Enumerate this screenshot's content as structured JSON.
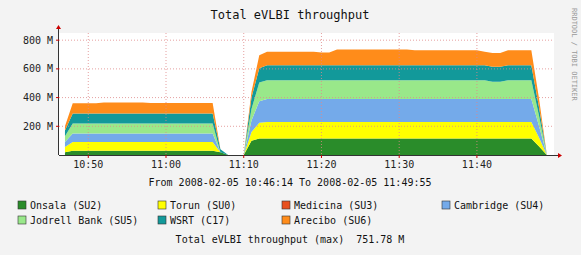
{
  "chart_data": {
    "type": "area",
    "title": "Total eVLBI throughput",
    "subtitle": "From 2008-02-05 10:46:14 To 2008-02-05 11:49:55",
    "annotations": [
      "Total eVLBI throughput (max)  751.78 M",
      "RRDTOOL / TOBI OETIKER"
    ],
    "stacked": true,
    "grid": true,
    "legend": "bottom",
    "xlim": [
      646.2333,
      709.9167
    ],
    "xticks": [
      {
        "value": 650,
        "label": "10:50"
      },
      {
        "value": 660,
        "label": "11:00"
      },
      {
        "value": 670,
        "label": "11:10"
      },
      {
        "value": 680,
        "label": "11:20"
      },
      {
        "value": 690,
        "label": "11:30"
      },
      {
        "value": 700,
        "label": "11:40"
      }
    ],
    "ylim": [
      0,
      850
    ],
    "yticks": [
      {
        "value": 200,
        "label": "200 M"
      },
      {
        "value": 400,
        "label": "400 M"
      },
      {
        "value": 600,
        "label": "600 M"
      },
      {
        "value": 800,
        "label": "800 M"
      }
    ],
    "x": [
      647,
      648,
      649,
      650,
      651,
      652,
      653,
      654,
      655,
      656,
      657,
      658,
      659,
      660,
      661,
      662,
      663,
      664,
      665,
      666,
      667,
      668,
      669,
      670,
      671,
      672,
      673,
      674,
      675,
      676,
      677,
      678,
      679,
      680,
      681,
      682,
      683,
      684,
      685,
      686,
      687,
      688,
      689,
      690,
      691,
      692,
      693,
      694,
      695,
      696,
      697,
      698,
      699,
      700,
      701,
      702,
      703,
      704,
      705,
      706,
      707,
      708,
      709
    ],
    "series": [
      {
        "name": "Onsala (SU2)",
        "color": "#2a8c2a",
        "values": [
          20,
          30,
          30,
          30,
          30,
          30,
          30,
          30,
          30,
          30,
          30,
          30,
          30,
          30,
          30,
          30,
          30,
          30,
          30,
          30,
          20,
          0,
          0,
          0,
          100,
          115,
          115,
          115,
          115,
          115,
          115,
          115,
          115,
          115,
          115,
          115,
          115,
          115,
          115,
          115,
          115,
          115,
          115,
          115,
          115,
          115,
          115,
          115,
          115,
          115,
          115,
          115,
          115,
          115,
          115,
          115,
          115,
          115,
          115,
          115,
          115,
          60,
          0
        ]
      },
      {
        "name": "Torun (SU0)",
        "color": "#ffff00",
        "values": [
          35,
          60,
          60,
          60,
          60,
          60,
          60,
          60,
          60,
          60,
          60,
          60,
          60,
          60,
          60,
          60,
          60,
          60,
          60,
          60,
          0,
          0,
          0,
          0,
          60,
          110,
          115,
          115,
          115,
          115,
          115,
          115,
          115,
          115,
          115,
          115,
          115,
          115,
          115,
          115,
          115,
          115,
          115,
          115,
          115,
          115,
          115,
          115,
          115,
          115,
          115,
          115,
          115,
          115,
          115,
          115,
          115,
          115,
          115,
          115,
          115,
          60,
          0
        ]
      },
      {
        "name": "Medicina (SU3)",
        "color": "#e8501e",
        "values": [
          0,
          0,
          0,
          0,
          0,
          0,
          0,
          0,
          0,
          0,
          0,
          0,
          0,
          0,
          0,
          0,
          0,
          0,
          0,
          0,
          0,
          0,
          0,
          0,
          0,
          0,
          0,
          0,
          0,
          0,
          0,
          0,
          0,
          0,
          0,
          0,
          0,
          0,
          0,
          0,
          0,
          0,
          0,
          0,
          0,
          0,
          0,
          0,
          0,
          0,
          0,
          0,
          0,
          0,
          0,
          0,
          0,
          0,
          0,
          0,
          0,
          0,
          0
        ]
      },
      {
        "name": "Cambridge (SU4)",
        "color": "#74aaea",
        "values": [
          35,
          60,
          60,
          60,
          60,
          60,
          60,
          60,
          60,
          60,
          60,
          60,
          60,
          60,
          60,
          60,
          60,
          60,
          60,
          60,
          0,
          0,
          0,
          0,
          80,
          150,
          160,
          160,
          160,
          160,
          160,
          160,
          160,
          160,
          160,
          160,
          160,
          160,
          160,
          160,
          160,
          160,
          160,
          160,
          160,
          160,
          160,
          160,
          160,
          160,
          160,
          160,
          160,
          160,
          160,
          160,
          160,
          160,
          160,
          160,
          160,
          80,
          0
        ]
      },
      {
        "name": "Jodrell Bank (SU5)",
        "color": "#99e88a",
        "values": [
          40,
          70,
          70,
          70,
          70,
          70,
          70,
          70,
          70,
          70,
          70,
          70,
          70,
          70,
          70,
          70,
          70,
          70,
          70,
          70,
          0,
          0,
          0,
          0,
          80,
          130,
          130,
          130,
          130,
          130,
          130,
          130,
          130,
          130,
          130,
          130,
          130,
          130,
          130,
          130,
          130,
          130,
          130,
          130,
          130,
          130,
          130,
          130,
          130,
          130,
          130,
          130,
          130,
          130,
          130,
          120,
          120,
          130,
          130,
          130,
          130,
          70,
          0
        ]
      },
      {
        "name": "WSRT (C17)",
        "color": "#12999a",
        "values": [
          40,
          70,
          70,
          70,
          70,
          70,
          70,
          70,
          70,
          70,
          70,
          70,
          70,
          70,
          70,
          70,
          70,
          70,
          70,
          70,
          20,
          0,
          0,
          0,
          80,
          100,
          105,
          105,
          105,
          105,
          105,
          105,
          105,
          105,
          105,
          105,
          105,
          105,
          105,
          105,
          105,
          105,
          105,
          105,
          105,
          105,
          105,
          105,
          105,
          105,
          105,
          105,
          105,
          105,
          105,
          105,
          105,
          105,
          105,
          105,
          105,
          60,
          0
        ]
      },
      {
        "name": "Arecibo (SU6)",
        "color": "#ff8c1a",
        "values": [
          30,
          70,
          70,
          70,
          70,
          75,
          75,
          75,
          75,
          75,
          75,
          72,
          72,
          72,
          72,
          72,
          72,
          72,
          72,
          72,
          0,
          0,
          0,
          0,
          40,
          90,
          95,
          95,
          95,
          95,
          95,
          95,
          95,
          90,
          90,
          110,
          110,
          110,
          110,
          110,
          110,
          110,
          110,
          110,
          110,
          105,
          105,
          105,
          105,
          105,
          105,
          105,
          105,
          105,
          95,
          95,
          95,
          105,
          105,
          105,
          105,
          60,
          0
        ]
      }
    ]
  }
}
